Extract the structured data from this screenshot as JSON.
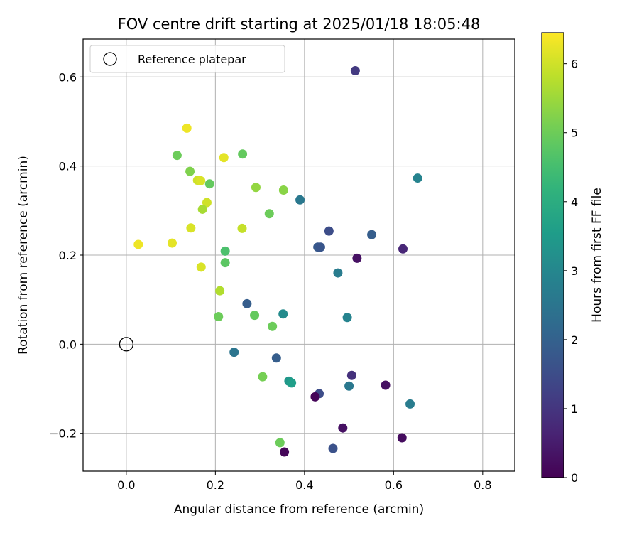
{
  "chart_data": {
    "type": "scatter",
    "title": "FOV centre drift starting at 2025/01/18 18:05:48",
    "xlabel": "Angular distance from reference (arcmin)",
    "ylabel": "Rotation from reference (arcmin)",
    "xlim": [
      -0.097,
      0.872
    ],
    "ylim": [
      -0.285,
      0.685
    ],
    "xticks": [
      0.0,
      0.2,
      0.4,
      0.6,
      0.8
    ],
    "xtick_labels": [
      "0.0",
      "0.2",
      "0.4",
      "0.6",
      "0.8"
    ],
    "yticks": [
      -0.2,
      0.0,
      0.2,
      0.4,
      0.6
    ],
    "ytick_labels": [
      "−0.2",
      "0.0",
      "0.2",
      "0.4",
      "0.6"
    ],
    "grid": true,
    "legend": {
      "placement": "top-left",
      "entries": [
        "Reference platepar"
      ]
    },
    "reference_point": {
      "x": 0.0,
      "y": 0.0,
      "label": "Reference platepar"
    },
    "colorbar": {
      "label": "Hours from first FF file",
      "colormap": "viridis",
      "range": [
        0,
        6.45
      ],
      "ticks": [
        0,
        1,
        2,
        3,
        4,
        5,
        6
      ],
      "tick_labels": [
        "0",
        "1",
        "2",
        "3",
        "4",
        "5",
        "6"
      ]
    },
    "points": [
      {
        "x": 0.514,
        "y": 0.614,
        "hours": 1.1
      },
      {
        "x": 0.136,
        "y": 0.485,
        "hours": 6.3
      },
      {
        "x": 0.114,
        "y": 0.424,
        "hours": 5.0
      },
      {
        "x": 0.261,
        "y": 0.427,
        "hours": 4.9
      },
      {
        "x": 0.219,
        "y": 0.419,
        "hours": 6.2
      },
      {
        "x": 0.143,
        "y": 0.388,
        "hours": 5.2
      },
      {
        "x": 0.654,
        "y": 0.373,
        "hours": 2.9
      },
      {
        "x": 0.16,
        "y": 0.368,
        "hours": 6.0
      },
      {
        "x": 0.167,
        "y": 0.367,
        "hours": 6.1
      },
      {
        "x": 0.187,
        "y": 0.36,
        "hours": 4.9
      },
      {
        "x": 0.291,
        "y": 0.352,
        "hours": 5.4
      },
      {
        "x": 0.353,
        "y": 0.346,
        "hours": 5.3
      },
      {
        "x": 0.39,
        "y": 0.324,
        "hours": 2.6
      },
      {
        "x": 0.181,
        "y": 0.318,
        "hours": 6.0
      },
      {
        "x": 0.171,
        "y": 0.303,
        "hours": 5.6
      },
      {
        "x": 0.321,
        "y": 0.293,
        "hours": 5.0
      },
      {
        "x": 0.145,
        "y": 0.261,
        "hours": 6.1
      },
      {
        "x": 0.26,
        "y": 0.26,
        "hours": 5.9
      },
      {
        "x": 0.455,
        "y": 0.254,
        "hours": 1.5
      },
      {
        "x": 0.551,
        "y": 0.246,
        "hours": 1.9
      },
      {
        "x": 0.027,
        "y": 0.224,
        "hours": 6.3
      },
      {
        "x": 0.103,
        "y": 0.227,
        "hours": 6.2
      },
      {
        "x": 0.43,
        "y": 0.218,
        "hours": 1.8
      },
      {
        "x": 0.436,
        "y": 0.218,
        "hours": 1.7
      },
      {
        "x": 0.621,
        "y": 0.214,
        "hours": 0.7
      },
      {
        "x": 0.222,
        "y": 0.209,
        "hours": 4.6
      },
      {
        "x": 0.518,
        "y": 0.193,
        "hours": 0.3
      },
      {
        "x": 0.222,
        "y": 0.183,
        "hours": 4.8
      },
      {
        "x": 0.168,
        "y": 0.173,
        "hours": 6.1
      },
      {
        "x": 0.475,
        "y": 0.16,
        "hours": 2.7
      },
      {
        "x": 0.21,
        "y": 0.12,
        "hours": 5.7
      },
      {
        "x": 0.271,
        "y": 0.091,
        "hours": 1.9
      },
      {
        "x": 0.352,
        "y": 0.068,
        "hours": 3.1
      },
      {
        "x": 0.288,
        "y": 0.065,
        "hours": 4.9
      },
      {
        "x": 0.207,
        "y": 0.062,
        "hours": 5.0
      },
      {
        "x": 0.496,
        "y": 0.06,
        "hours": 2.9
      },
      {
        "x": 0.328,
        "y": 0.04,
        "hours": 5.0
      },
      {
        "x": 0.242,
        "y": -0.018,
        "hours": 2.5
      },
      {
        "x": 0.337,
        "y": -0.031,
        "hours": 1.9
      },
      {
        "x": 0.306,
        "y": -0.073,
        "hours": 5.1
      },
      {
        "x": 0.506,
        "y": -0.07,
        "hours": 0.9
      },
      {
        "x": 0.365,
        "y": -0.083,
        "hours": 3.4
      },
      {
        "x": 0.371,
        "y": -0.087,
        "hours": 3.6
      },
      {
        "x": 0.582,
        "y": -0.092,
        "hours": 0.3
      },
      {
        "x": 0.5,
        "y": -0.094,
        "hours": 2.6
      },
      {
        "x": 0.433,
        "y": -0.111,
        "hours": 1.5
      },
      {
        "x": 0.424,
        "y": -0.118,
        "hours": 0.1
      },
      {
        "x": 0.637,
        "y": -0.134,
        "hours": 2.7
      },
      {
        "x": 0.486,
        "y": -0.188,
        "hours": 0.3
      },
      {
        "x": 0.619,
        "y": -0.21,
        "hours": 0.2
      },
      {
        "x": 0.345,
        "y": -0.221,
        "hours": 5.0
      },
      {
        "x": 0.464,
        "y": -0.234,
        "hours": 1.6
      },
      {
        "x": 0.355,
        "y": -0.242,
        "hours": 0.1
      }
    ]
  }
}
